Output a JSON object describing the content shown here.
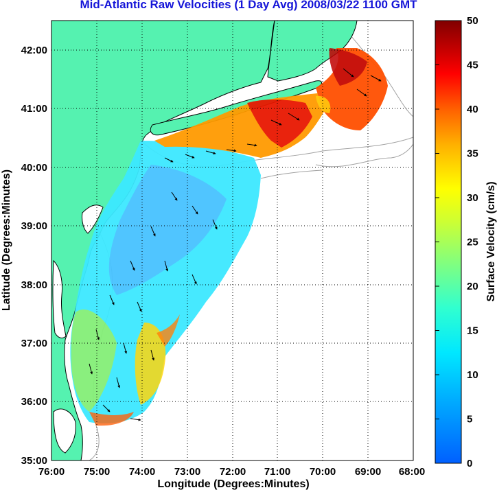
{
  "title": "Mid-Atlantic Raw Velocities (1 Day Avg) 2008/03/22 1100 GMT",
  "x_axis": {
    "label": "Longitude (Degrees:Minutes)",
    "ticks": [
      "76:00",
      "75:00",
      "74:00",
      "73:00",
      "72:00",
      "71:00",
      "70:00",
      "69:00",
      "68:00"
    ]
  },
  "y_axis": {
    "label": "Latitude (Degrees:Minutes)",
    "ticks": [
      "35:00",
      "36:00",
      "37:00",
      "38:00",
      "39:00",
      "40:00",
      "41:00",
      "42:00"
    ]
  },
  "colorbar": {
    "label": "Surface Velocity (cm/s)",
    "ticks": [
      "0",
      "5",
      "10",
      "15",
      "20",
      "25",
      "30",
      "35",
      "40",
      "45",
      "50"
    ],
    "min": 0,
    "max": 50,
    "colormap": "jet"
  },
  "colors": {
    "title": "#1515d8",
    "land": "#55f2b0",
    "coastline": "#000000",
    "bathymetry": "#999999",
    "grid": "#000000"
  },
  "extent": {
    "lon": [
      -76,
      -68
    ],
    "lat": [
      35,
      42.5
    ]
  }
}
